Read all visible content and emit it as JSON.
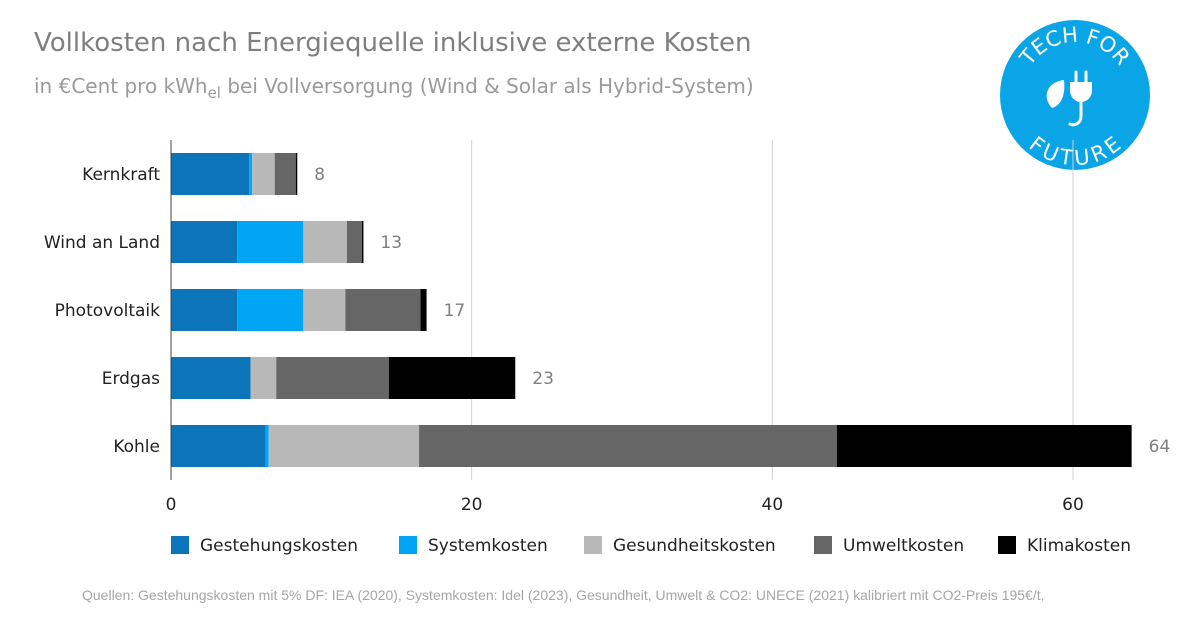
{
  "header": {
    "title": "Vollkosten nach Energiequelle inklusive externe Kosten",
    "subtitle_pre": "in €Cent pro kWh",
    "subtitle_sub": "el",
    "subtitle_post": " bei Vollversorgung (Wind & Solar als Hybrid-System)"
  },
  "logo": {
    "text_top": "TECH FOR",
    "text_bottom": "FUTURE",
    "color": "#0AA5E6",
    "icon": "plug-leaf-icon"
  },
  "footer": {
    "source": "Quellen: Gestehungskosten mit 5% DF: IEA (2020), Systemkosten: Idel (2023), Gesundheit, Umwelt & CO2: UNECE (2021) kalibriert mit CO2-Preis 195€/t,"
  },
  "chart_data": {
    "type": "bar",
    "orientation": "horizontal",
    "stacked": true,
    "categories": [
      "Kernkraft",
      "Wind an Land",
      "Photovoltaik",
      "Erdgas",
      "Kohle"
    ],
    "series": [
      {
        "name": "Gestehungskosten",
        "color": "#0C75B9",
        "values": [
          5.2,
          4.4,
          4.4,
          5.3,
          6.3
        ]
      },
      {
        "name": "Systemkosten",
        "color": "#00A6F6",
        "values": [
          0.2,
          4.4,
          4.4,
          0.0,
          0.2
        ]
      },
      {
        "name": "Gesundheitskosten",
        "color": "#B8B8B8",
        "values": [
          1.5,
          2.9,
          2.8,
          1.7,
          10.0
        ]
      },
      {
        "name": "Umweltkosten",
        "color": "#666666",
        "values": [
          1.4,
          1.0,
          5.0,
          7.5,
          27.8
        ]
      },
      {
        "name": "Klimakosten",
        "color": "#000000",
        "values": [
          0.1,
          0.1,
          0.4,
          8.4,
          19.6
        ]
      }
    ],
    "totals": [
      "8",
      "13",
      "17",
      "23",
      "64"
    ],
    "xlim": [
      0,
      64
    ],
    "xticks": [
      0,
      20,
      40,
      60
    ],
    "grid": true,
    "legend_position": "bottom",
    "title": "Vollkosten nach Energiequelle inklusive externe Kosten",
    "xlabel": "",
    "ylabel": ""
  }
}
